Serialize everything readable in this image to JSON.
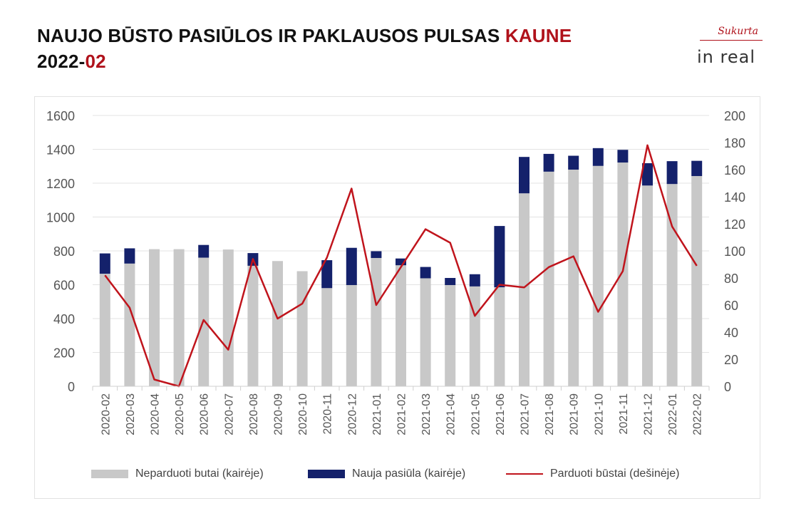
{
  "header": {
    "title_line1_main": "NAUJO BŪSTO PASIŪLOS IR PAKLAUSOS PULSAS ",
    "title_line1_accent": "KAUNE",
    "title_line2_main": "2022-",
    "title_line2_accent": "02"
  },
  "logo": {
    "top": "Sukurta",
    "bottom": "in real"
  },
  "colors": {
    "gray": "#c8c8c8",
    "navy": "#14216b",
    "red": "#c0141c",
    "accent": "#b0121b"
  },
  "chart_data": {
    "type": "bar",
    "stacked": true,
    "categories": [
      "2020-02",
      "2020-03",
      "2020-04",
      "2020-05",
      "2020-06",
      "2020-07",
      "2020-08",
      "2020-09",
      "2020-10",
      "2020-11",
      "2020-12",
      "2021-01",
      "2021-02",
      "2021-03",
      "2021-04",
      "2021-05",
      "2021-06",
      "2021-07",
      "2021-08",
      "2021-09",
      "2021-10",
      "2021-11",
      "2021-12",
      "2022-01",
      "2022-02"
    ],
    "series": [
      {
        "name": "Neparduoti butai (kairėje)",
        "axis": "left",
        "type": "bar",
        "color": "#c8c8c8",
        "values": [
          665,
          725,
          810,
          810,
          760,
          808,
          712,
          740,
          680,
          580,
          598,
          758,
          715,
          638,
          598,
          590,
          585,
          1140,
          1268,
          1280,
          1302,
          1322,
          1186,
          1195,
          1242
        ]
      },
      {
        "name": "Nauja pasiūla (kairėje)",
        "axis": "left",
        "type": "bar",
        "color": "#14216b",
        "values": [
          120,
          90,
          0,
          0,
          75,
          0,
          75,
          0,
          0,
          165,
          220,
          40,
          40,
          67,
          42,
          72,
          362,
          215,
          105,
          82,
          105,
          75,
          132,
          135,
          90
        ]
      },
      {
        "name": "Parduoti būstai (dešinėje)",
        "axis": "right",
        "type": "line",
        "color": "#c0141c",
        "values": [
          82,
          58,
          5,
          0,
          49,
          27,
          94,
          50,
          61,
          95,
          146,
          60,
          88,
          116,
          106,
          52,
          75,
          73,
          88,
          96,
          55,
          85,
          178,
          118,
          89
        ]
      }
    ],
    "left_axis": {
      "ylim": [
        0,
        1600
      ],
      "ticks": [
        "0",
        "200",
        "400",
        "600",
        "800",
        "1000",
        "1200",
        "1400",
        "1600"
      ]
    },
    "right_axis": {
      "ylim": [
        0,
        200
      ],
      "ticks": [
        "0",
        "20",
        "40",
        "60",
        "80",
        "100",
        "120",
        "140",
        "160",
        "180",
        "200"
      ]
    },
    "grid": "horizontal",
    "legend_position": "bottom"
  }
}
